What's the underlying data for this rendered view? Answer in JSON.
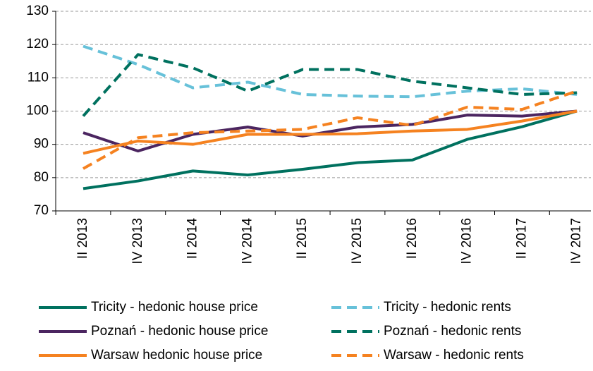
{
  "chart_data": {
    "type": "line",
    "categories": [
      "II 2013",
      "IV 2013",
      "II 2014",
      "IV 2014",
      "II 2015",
      "IV 2015",
      "II 2016",
      "IV 2016",
      "II 2017",
      "IV 2017"
    ],
    "series": [
      {
        "name": "Tricity - hedonic house price",
        "color": "#00715f",
        "dashed": false,
        "values": [
          76.7,
          79,
          82,
          80.8,
          82.5,
          84.5,
          85.3,
          91.5,
          95.3,
          100
        ]
      },
      {
        "name": "Tricity - hedonic rents",
        "color": "#67c1d9",
        "dashed": true,
        "values": [
          119.5,
          114,
          107,
          108.7,
          105,
          104.5,
          104.3,
          106,
          106.7,
          105
        ]
      },
      {
        "name": "Poznań - hedonic house price",
        "color": "#4b2560",
        "dashed": false,
        "values": [
          93.5,
          88,
          93,
          95.2,
          92.5,
          95.2,
          96,
          98.8,
          98.5,
          100
        ]
      },
      {
        "name": "Poznań - hedonic rents",
        "color": "#00715f",
        "dashed": true,
        "values": [
          98.5,
          117,
          113,
          106,
          112.5,
          112.5,
          109,
          107,
          105,
          105.5
        ]
      },
      {
        "name": "Warsaw hedonic house price",
        "color": "#f58220",
        "dashed": false,
        "values": [
          87.3,
          91,
          90,
          93,
          93,
          93.2,
          94,
          94.5,
          97,
          100
        ]
      },
      {
        "name": "Warsaw - hedonic rents",
        "color": "#f58220",
        "dashed": true,
        "values": [
          82.7,
          92,
          93.5,
          94,
          94.5,
          98,
          95.7,
          101.2,
          100.5,
          106
        ]
      }
    ],
    "ylim": [
      70,
      130
    ],
    "yticks": [
      70,
      80,
      90,
      100,
      110,
      120,
      130
    ],
    "grid": true
  }
}
